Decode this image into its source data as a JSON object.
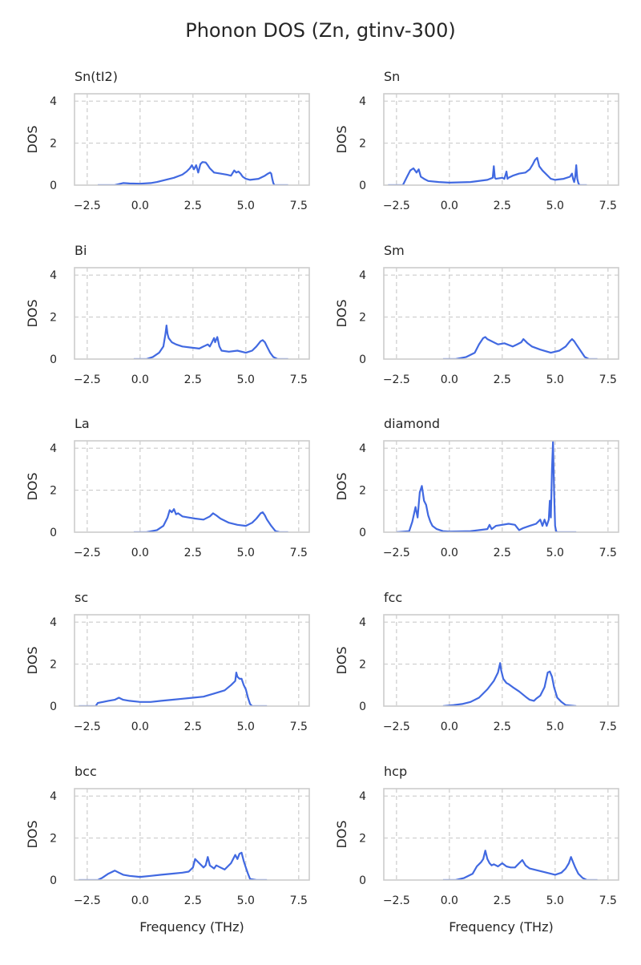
{
  "figure": {
    "title": "Phonon DOS (Zn, gtinv-300)",
    "line_color": "#4169e1",
    "grid_color": "#cccccc",
    "frame_color": "#cccccc"
  },
  "chart_data": [
    {
      "type": "line",
      "title": "Sn(tI2)",
      "xlabel": "",
      "ylabel": "DOS",
      "xlim": [
        -3.1,
        8.0
      ],
      "ylim": [
        0,
        4.35
      ],
      "xticks": [
        -2.5,
        0.0,
        2.5,
        5.0,
        7.5
      ],
      "xtick_labels": [
        "−2.5",
        "0.0",
        "2.5",
        "5.0",
        "7.5"
      ],
      "yticks": [
        0,
        2,
        4
      ],
      "ytick_labels": [
        "0",
        "2",
        "4"
      ],
      "grid": true,
      "series": [
        {
          "x": [
            -2.0,
            -1.2,
            -1.0,
            -0.8,
            -0.5,
            0.0,
            0.5,
            0.8,
            1.2,
            1.6,
            2.0,
            2.2,
            2.35,
            2.45,
            2.55,
            2.65,
            2.75,
            2.85,
            2.95,
            3.1,
            3.2,
            3.3,
            3.5,
            3.8,
            4.1,
            4.3,
            4.45,
            4.55,
            4.65,
            4.75,
            4.85,
            5.0,
            5.2,
            5.6,
            5.9,
            6.05,
            6.15,
            6.2,
            6.25,
            6.3,
            6.35,
            6.4,
            6.6,
            7.0
          ],
          "y": [
            0.0,
            0.0,
            0.05,
            0.1,
            0.08,
            0.07,
            0.1,
            0.15,
            0.25,
            0.35,
            0.5,
            0.65,
            0.8,
            0.95,
            0.75,
            0.95,
            0.6,
            1.0,
            1.1,
            1.08,
            0.95,
            0.8,
            0.6,
            0.55,
            0.5,
            0.45,
            0.7,
            0.6,
            0.65,
            0.55,
            0.4,
            0.3,
            0.25,
            0.3,
            0.45,
            0.55,
            0.6,
            0.55,
            0.3,
            0.1,
            0.0,
            0.0,
            0.0,
            0.0
          ]
        }
      ]
    },
    {
      "type": "line",
      "title": "Sn",
      "xlabel": "",
      "ylabel": "DOS",
      "xlim": [
        -3.1,
        8.0
      ],
      "ylim": [
        0,
        4.35
      ],
      "xticks": [
        -2.5,
        0.0,
        2.5,
        5.0,
        7.5
      ],
      "xtick_labels": [
        "−2.5",
        "0.0",
        "2.5",
        "5.0",
        "7.5"
      ],
      "yticks": [
        0,
        2,
        4
      ],
      "ytick_labels": [
        "0",
        "2",
        "4"
      ],
      "grid": true,
      "series": [
        {
          "x": [
            -2.9,
            -2.2,
            -2.0,
            -1.85,
            -1.7,
            -1.55,
            -1.45,
            -1.35,
            -1.2,
            -1.0,
            -0.5,
            0.0,
            1.0,
            1.8,
            2.05,
            2.1,
            2.15,
            2.2,
            2.5,
            2.6,
            2.7,
            2.75,
            2.8,
            3.0,
            3.3,
            3.6,
            3.8,
            3.95,
            4.05,
            4.15,
            4.25,
            4.4,
            4.8,
            5.0,
            5.4,
            5.7,
            5.8,
            5.85,
            5.9,
            5.95,
            6.0,
            6.05,
            6.1,
            6.15,
            6.5
          ],
          "y": [
            0.0,
            0.0,
            0.4,
            0.7,
            0.8,
            0.6,
            0.75,
            0.4,
            0.3,
            0.2,
            0.15,
            0.12,
            0.15,
            0.25,
            0.35,
            0.9,
            0.35,
            0.3,
            0.35,
            0.3,
            0.65,
            0.3,
            0.35,
            0.45,
            0.55,
            0.6,
            0.75,
            1.0,
            1.2,
            1.3,
            0.9,
            0.7,
            0.3,
            0.25,
            0.3,
            0.4,
            0.55,
            0.3,
            0.15,
            0.4,
            0.95,
            0.3,
            0.1,
            0.0,
            0.0
          ]
        }
      ]
    },
    {
      "type": "line",
      "title": "Bi",
      "xlabel": "",
      "ylabel": "DOS",
      "xlim": [
        -3.1,
        8.0
      ],
      "ylim": [
        0,
        4.35
      ],
      "xticks": [
        -2.5,
        0.0,
        2.5,
        5.0,
        7.5
      ],
      "xtick_labels": [
        "−2.5",
        "0.0",
        "2.5",
        "5.0",
        "7.5"
      ],
      "yticks": [
        0,
        2,
        4
      ],
      "ytick_labels": [
        "0",
        "2",
        "4"
      ],
      "grid": true,
      "series": [
        {
          "x": [
            -0.3,
            0.3,
            0.6,
            0.9,
            1.1,
            1.2,
            1.25,
            1.3,
            1.35,
            1.5,
            1.7,
            2.0,
            2.4,
            2.8,
            3.0,
            3.2,
            3.3,
            3.4,
            3.5,
            3.55,
            3.65,
            3.75,
            3.85,
            4.2,
            4.6,
            5.0,
            5.3,
            5.5,
            5.7,
            5.8,
            5.9,
            6.0,
            6.15,
            6.3,
            6.5,
            7.0
          ],
          "y": [
            0.0,
            0.0,
            0.1,
            0.3,
            0.6,
            1.2,
            1.6,
            1.2,
            1.0,
            0.8,
            0.7,
            0.6,
            0.55,
            0.5,
            0.6,
            0.7,
            0.6,
            0.8,
            1.0,
            0.8,
            1.05,
            0.6,
            0.4,
            0.35,
            0.4,
            0.3,
            0.4,
            0.6,
            0.85,
            0.9,
            0.8,
            0.6,
            0.3,
            0.1,
            0.0,
            0.0
          ]
        }
      ]
    },
    {
      "type": "line",
      "title": "Sm",
      "xlabel": "",
      "ylabel": "DOS",
      "xlim": [
        -3.1,
        8.0
      ],
      "ylim": [
        0,
        4.35
      ],
      "xticks": [
        -2.5,
        0.0,
        2.5,
        5.0,
        7.5
      ],
      "xtick_labels": [
        "−2.5",
        "0.0",
        "2.5",
        "5.0",
        "7.5"
      ],
      "yticks": [
        0,
        2,
        4
      ],
      "ytick_labels": [
        "0",
        "2",
        "4"
      ],
      "grid": true,
      "series": [
        {
          "x": [
            -0.3,
            0.3,
            0.8,
            1.2,
            1.4,
            1.6,
            1.7,
            1.8,
            2.0,
            2.3,
            2.6,
            3.0,
            3.2,
            3.4,
            3.5,
            3.6,
            3.7,
            3.9,
            4.3,
            4.8,
            5.2,
            5.5,
            5.7,
            5.8,
            5.9,
            6.0,
            6.2,
            6.4,
            6.6,
            7.0
          ],
          "y": [
            0.0,
            0.0,
            0.1,
            0.3,
            0.7,
            1.0,
            1.05,
            0.95,
            0.85,
            0.7,
            0.75,
            0.6,
            0.7,
            0.8,
            0.95,
            0.85,
            0.75,
            0.6,
            0.45,
            0.3,
            0.4,
            0.6,
            0.85,
            0.95,
            0.85,
            0.7,
            0.4,
            0.1,
            0.0,
            0.0
          ]
        }
      ]
    },
    {
      "type": "line",
      "title": "La",
      "xlabel": "",
      "ylabel": "DOS",
      "xlim": [
        -3.1,
        8.0
      ],
      "ylim": [
        0,
        4.35
      ],
      "xticks": [
        -2.5,
        0.0,
        2.5,
        5.0,
        7.5
      ],
      "xtick_labels": [
        "−2.5",
        "0.0",
        "2.5",
        "5.0",
        "7.5"
      ],
      "yticks": [
        0,
        2,
        4
      ],
      "ytick_labels": [
        "0",
        "2",
        "4"
      ],
      "grid": true,
      "series": [
        {
          "x": [
            -0.3,
            0.3,
            0.8,
            1.1,
            1.3,
            1.4,
            1.5,
            1.6,
            1.7,
            1.8,
            2.0,
            2.3,
            2.6,
            3.0,
            3.3,
            3.45,
            3.6,
            3.8,
            4.2,
            4.6,
            5.0,
            5.3,
            5.5,
            5.7,
            5.8,
            5.9,
            6.0,
            6.2,
            6.4,
            6.6,
            7.0
          ],
          "y": [
            0.0,
            0.0,
            0.1,
            0.3,
            0.7,
            1.05,
            0.95,
            1.1,
            0.85,
            0.9,
            0.75,
            0.7,
            0.65,
            0.6,
            0.75,
            0.9,
            0.8,
            0.65,
            0.45,
            0.35,
            0.3,
            0.45,
            0.65,
            0.9,
            0.95,
            0.8,
            0.6,
            0.3,
            0.05,
            0.0,
            0.0
          ]
        }
      ]
    },
    {
      "type": "line",
      "title": "diamond",
      "xlabel": "",
      "ylabel": "DOS",
      "xlim": [
        -3.1,
        8.0
      ],
      "ylim": [
        0,
        4.35
      ],
      "xticks": [
        -2.5,
        0.0,
        2.5,
        5.0,
        7.5
      ],
      "xtick_labels": [
        "−2.5",
        "0.0",
        "2.5",
        "5.0",
        "7.5"
      ],
      "yticks": [
        0,
        2,
        4
      ],
      "ytick_labels": [
        "0",
        "2",
        "4"
      ],
      "grid": true,
      "series": [
        {
          "x": [
            -2.5,
            -1.9,
            -1.75,
            -1.6,
            -1.5,
            -1.4,
            -1.3,
            -1.2,
            -1.1,
            -1.0,
            -0.9,
            -0.8,
            -0.6,
            -0.3,
            0.0,
            1.0,
            1.8,
            1.9,
            2.0,
            2.2,
            2.5,
            2.8,
            3.1,
            3.3,
            3.5,
            3.8,
            4.1,
            4.3,
            4.4,
            4.5,
            4.6,
            4.7,
            4.75,
            4.8,
            4.85,
            4.9,
            4.95,
            5.0,
            5.05,
            5.1,
            5.5,
            6.0
          ],
          "y": [
            0.0,
            0.05,
            0.5,
            1.2,
            0.7,
            1.9,
            2.2,
            1.5,
            1.3,
            0.8,
            0.5,
            0.3,
            0.15,
            0.05,
            0.03,
            0.05,
            0.15,
            0.35,
            0.15,
            0.3,
            0.35,
            0.4,
            0.35,
            0.1,
            0.2,
            0.3,
            0.4,
            0.6,
            0.3,
            0.6,
            0.3,
            0.6,
            1.5,
            0.7,
            3.0,
            4.3,
            2.0,
            0.3,
            0.05,
            0.0,
            0.0,
            0.0
          ]
        }
      ]
    },
    {
      "type": "line",
      "title": "sc",
      "xlabel": "",
      "ylabel": "DOS",
      "xlim": [
        -3.1,
        8.0
      ],
      "ylim": [
        0,
        4.35
      ],
      "xticks": [
        -2.5,
        0.0,
        2.5,
        5.0,
        7.5
      ],
      "xtick_labels": [
        "−2.5",
        "0.0",
        "2.5",
        "5.0",
        "7.5"
      ],
      "yticks": [
        0,
        2,
        4
      ],
      "ytick_labels": [
        "0",
        "2",
        "4"
      ],
      "grid": true,
      "series": [
        {
          "x": [
            -2.9,
            -2.1,
            -2.0,
            -1.5,
            -1.2,
            -1.0,
            -0.8,
            -0.5,
            0.0,
            0.5,
            1.0,
            1.5,
            2.0,
            2.5,
            3.0,
            3.5,
            4.0,
            4.3,
            4.5,
            4.55,
            4.6,
            4.7,
            4.8,
            4.9,
            5.0,
            5.1,
            5.2,
            5.3,
            5.5,
            6.0
          ],
          "y": [
            0.0,
            0.0,
            0.15,
            0.25,
            0.3,
            0.4,
            0.3,
            0.25,
            0.2,
            0.2,
            0.25,
            0.3,
            0.35,
            0.4,
            0.45,
            0.6,
            0.75,
            1.0,
            1.2,
            1.6,
            1.4,
            1.3,
            1.3,
            1.0,
            0.8,
            0.4,
            0.1,
            0.0,
            0.0,
            0.0
          ]
        }
      ]
    },
    {
      "type": "line",
      "title": "fcc",
      "xlabel": "",
      "ylabel": "DOS",
      "xlim": [
        -3.1,
        8.0
      ],
      "ylim": [
        0,
        4.35
      ],
      "xticks": [
        -2.5,
        0.0,
        2.5,
        5.0,
        7.5
      ],
      "xtick_labels": [
        "−2.5",
        "0.0",
        "2.5",
        "5.0",
        "7.5"
      ],
      "yticks": [
        0,
        2,
        4
      ],
      "ytick_labels": [
        "0",
        "2",
        "4"
      ],
      "grid": true,
      "series": [
        {
          "x": [
            -0.3,
            0.2,
            0.6,
            1.0,
            1.4,
            1.8,
            2.1,
            2.3,
            2.4,
            2.45,
            2.55,
            2.7,
            2.8,
            3.0,
            3.3,
            3.6,
            3.8,
            4.0,
            4.1,
            4.3,
            4.5,
            4.65,
            4.75,
            4.85,
            4.95,
            5.1,
            5.3,
            5.5,
            6.0
          ],
          "y": [
            0.0,
            0.05,
            0.1,
            0.2,
            0.4,
            0.8,
            1.2,
            1.6,
            2.05,
            1.7,
            1.3,
            1.1,
            1.05,
            0.9,
            0.7,
            0.45,
            0.3,
            0.25,
            0.35,
            0.5,
            0.9,
            1.6,
            1.65,
            1.4,
            0.9,
            0.4,
            0.2,
            0.05,
            0.0
          ]
        }
      ]
    },
    {
      "type": "line",
      "title": "bcc",
      "xlabel": "",
      "ylabel": "DOS",
      "xlim": [
        -3.1,
        8.0
      ],
      "ylim": [
        0,
        4.35
      ],
      "xticks": [
        -2.5,
        0.0,
        2.5,
        5.0,
        7.5
      ],
      "xtick_labels": [
        "−2.5",
        "0.0",
        "2.5",
        "5.0",
        "7.5"
      ],
      "yticks": [
        0,
        2,
        4
      ],
      "ytick_labels": [
        "0",
        "2",
        "4"
      ],
      "grid": true,
      "series": [
        {
          "x": [
            -2.9,
            -2.0,
            -1.8,
            -1.5,
            -1.2,
            -1.0,
            -0.8,
            -0.5,
            0.0,
            0.5,
            1.0,
            1.5,
            2.0,
            2.3,
            2.5,
            2.6,
            2.8,
            3.0,
            3.1,
            3.2,
            3.3,
            3.5,
            3.6,
            3.8,
            4.0,
            4.3,
            4.5,
            4.6,
            4.7,
            4.8,
            4.9,
            5.0,
            5.1,
            5.2,
            5.5,
            6.0
          ],
          "y": [
            0.0,
            0.0,
            0.1,
            0.3,
            0.45,
            0.35,
            0.25,
            0.2,
            0.15,
            0.2,
            0.25,
            0.3,
            0.35,
            0.4,
            0.6,
            1.0,
            0.8,
            0.6,
            0.7,
            1.1,
            0.7,
            0.55,
            0.7,
            0.6,
            0.5,
            0.8,
            1.2,
            1.0,
            1.25,
            1.3,
            0.9,
            0.6,
            0.3,
            0.05,
            0.0,
            0.0
          ]
        }
      ]
    },
    {
      "type": "line",
      "title": "hcp",
      "xlabel": "Frequency (THz)",
      "ylabel": "DOS",
      "xlim": [
        -3.1,
        8.0
      ],
      "ylim": [
        0,
        4.35
      ],
      "xticks": [
        -2.5,
        0.0,
        2.5,
        5.0,
        7.5
      ],
      "xtick_labels": [
        "−2.5",
        "0.0",
        "2.5",
        "5.0",
        "7.5"
      ],
      "yticks": [
        0,
        2,
        4
      ],
      "ytick_labels": [
        "0",
        "2",
        "4"
      ],
      "grid": true,
      "series": [
        {
          "x": [
            -0.3,
            0.3,
            0.7,
            1.1,
            1.3,
            1.5,
            1.6,
            1.7,
            1.8,
            1.9,
            2.0,
            2.1,
            2.3,
            2.5,
            2.7,
            2.9,
            3.1,
            3.3,
            3.45,
            3.6,
            3.8,
            4.2,
            4.6,
            5.0,
            5.3,
            5.5,
            5.65,
            5.75,
            5.85,
            5.95,
            6.1,
            6.3,
            6.5,
            7.0
          ],
          "y": [
            0.0,
            0.0,
            0.1,
            0.3,
            0.65,
            0.85,
            1.0,
            1.4,
            1.0,
            0.8,
            0.7,
            0.75,
            0.65,
            0.8,
            0.65,
            0.6,
            0.6,
            0.8,
            0.95,
            0.7,
            0.55,
            0.45,
            0.35,
            0.25,
            0.35,
            0.55,
            0.8,
            1.1,
            0.85,
            0.6,
            0.3,
            0.1,
            0.0,
            0.0
          ]
        }
      ]
    }
  ]
}
